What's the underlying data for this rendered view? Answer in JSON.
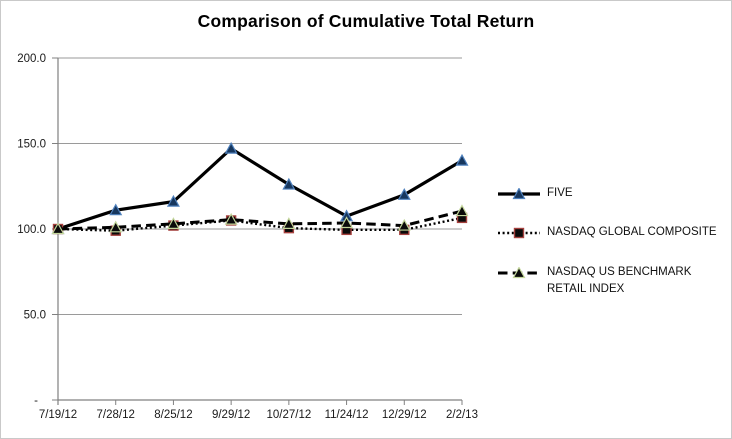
{
  "chart_data": {
    "type": "line",
    "title": "Comparison of Cumulative Total Return",
    "categories": [
      "7/19/12",
      "7/28/12",
      "8/25/12",
      "9/29/12",
      "10/27/12",
      "11/24/12",
      "12/29/12",
      "2/2/13"
    ],
    "series": [
      {
        "name": "FIVE",
        "values": [
          100.0,
          111.0,
          116.0,
          147.0,
          126.0,
          107.5,
          120.0,
          140.0
        ],
        "line_style": "solid",
        "line_color": "#000000",
        "marker": "triangle",
        "marker_fill": "#17375E",
        "marker_stroke": "#4F81BD"
      },
      {
        "name": "NASDAQ GLOBAL COMPOSITE",
        "values": [
          100.0,
          99.0,
          102.0,
          105.0,
          100.5,
          99.5,
          99.5,
          106.5
        ],
        "line_style": "dotted",
        "line_color": "#000000",
        "marker": "square",
        "marker_fill": "#0a0a0a",
        "marker_stroke": "#A5413E"
      },
      {
        "name": "NASDAQ US BENCHMARK RETAIL INDEX",
        "values": [
          100.0,
          101.0,
          103.0,
          105.5,
          103.0,
          103.5,
          102.0,
          110.5
        ],
        "line_style": "dashed",
        "line_color": "#000000",
        "marker": "triangle",
        "marker_fill": "#0a0a0a",
        "marker_stroke": "#C3D69B"
      }
    ],
    "ylim": [
      0,
      200
    ],
    "ytick_values": [
      200,
      150,
      100,
      50,
      0
    ],
    "ytick_labels": [
      "200.0",
      "150.0",
      "100.0",
      "50.0",
      "-"
    ],
    "grid": true,
    "legend_position": "right"
  }
}
